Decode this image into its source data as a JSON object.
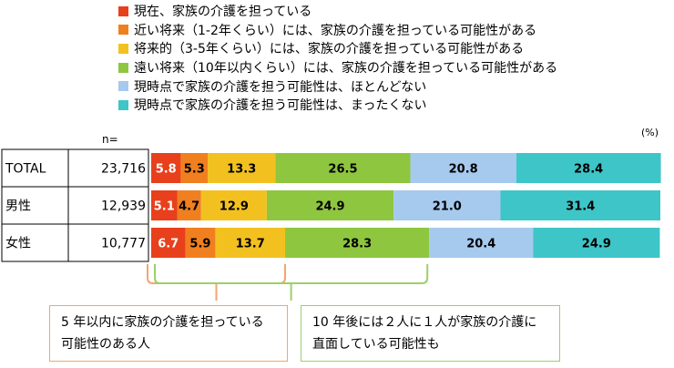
{
  "legend": [
    {
      "label": "現在、家族の介護を担っている",
      "color": "#e8401c"
    },
    {
      "label": "近い将来（1-2年くらい）には、家族の介護を担っている可能性がある",
      "color": "#f07f1f"
    },
    {
      "label": "将来的（3-5年くらい）には、家族の介護を担っている可能性がある",
      "color": "#f2c11f"
    },
    {
      "label": "遠い将来（10年以内くらい）には、家族の介護を担っている可能性がある",
      "color": "#8ec63f"
    },
    {
      "label": "現時点で家族の介護を担う可能性は、ほとんどない",
      "color": "#a6c9ee"
    },
    {
      "label": "現時点で家族の介護を担う可能性は、まったくない",
      "color": "#3ec5c8"
    }
  ],
  "n_header": "n=",
  "unit_label": "(%)",
  "chart_data": {
    "type": "bar",
    "orientation": "horizontal",
    "stacked": true,
    "categories": [
      "TOTAL",
      "男性",
      "女性"
    ],
    "n": [
      "23,716",
      "12,939",
      "10,777"
    ],
    "series": [
      {
        "name": "現在、家族の介護を担っている",
        "values": [
          5.8,
          5.1,
          6.7
        ]
      },
      {
        "name": "近い将来（1-2年くらい）には、家族の介護を担っている可能性がある",
        "values": [
          5.3,
          4.7,
          5.9
        ]
      },
      {
        "name": "将来的（3-5年くらい）には、家族の介護を担っている可能性がある",
        "values": [
          13.3,
          12.9,
          13.7
        ]
      },
      {
        "name": "遠い将来（10年以内くらい）には、家族の介護を担っている可能性がある",
        "values": [
          26.5,
          24.9,
          28.3
        ]
      },
      {
        "name": "現時点で家族の介護を担う可能性は、ほとんどない",
        "values": [
          20.8,
          21.0,
          20.4
        ]
      },
      {
        "name": "現時点で家族の介護を担う可能性は、まったくない",
        "values": [
          28.4,
          31.4,
          24.9
        ]
      }
    ],
    "xlim": [
      0,
      100
    ]
  },
  "callouts": {
    "left": "5 年以内に家族の介護を担っている可能性のある人",
    "right": "10 年後には２人に１人が家族の介護に直面している可能性も"
  }
}
